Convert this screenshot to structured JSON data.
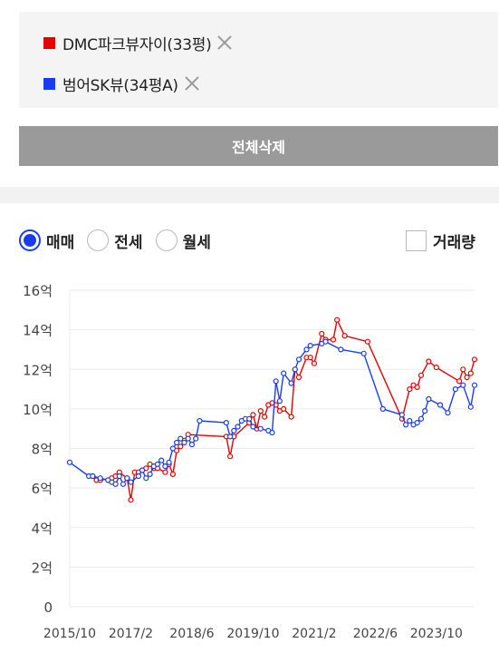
{
  "compare_list": [
    {
      "name": "DMC파크뷰자이(33평)",
      "color": "#e60000",
      "remove_icon": "close-icon"
    },
    {
      "name": "범어SK뷰(34평A)",
      "color": "#1a3cf0",
      "remove_icon": "close-icon"
    }
  ],
  "delete_all_label": "전체삭제",
  "trade_types": [
    {
      "label": "매매",
      "selected": true
    },
    {
      "label": "전세",
      "selected": false
    },
    {
      "label": "월세",
      "selected": false
    }
  ],
  "volume_toggle": {
    "label": "거래량",
    "checked": false
  },
  "chart_data": {
    "type": "line",
    "y_unit": "억",
    "ylim": [
      0,
      16
    ],
    "yticks": [
      0,
      2,
      4,
      6,
      8,
      10,
      12,
      14,
      16
    ],
    "ytick_labels": [
      "0",
      "2억",
      "4억",
      "6억",
      "8억",
      "10억",
      "12억",
      "14억",
      "16억"
    ],
    "xlim": [
      "2015-10",
      "2024-08"
    ],
    "xtick_labels": [
      "2015/10",
      "2017/2",
      "2018/6",
      "2019/10",
      "2021/2",
      "2022/6",
      "2023/10"
    ],
    "grid": true,
    "series": [
      {
        "name": "DMC파크뷰자이(33평)",
        "color": "#e60000",
        "x": [
          "2016-04",
          "2016-05",
          "2016-06",
          "2016-09",
          "2016-10",
          "2016-11",
          "2017-01",
          "2017-02",
          "2017-03",
          "2017-04",
          "2017-05",
          "2017-06",
          "2017-07",
          "2017-08",
          "2017-09",
          "2017-11",
          "2017-12",
          "2018-01",
          "2018-02",
          "2018-03",
          "2018-04",
          "2018-05",
          "2019-03",
          "2019-04",
          "2019-05",
          "2019-09",
          "2019-10",
          "2019-11",
          "2019-12",
          "2020-01",
          "2020-02",
          "2020-03",
          "2020-04",
          "2020-05",
          "2020-06",
          "2020-08",
          "2020-09",
          "2020-10",
          "2020-12",
          "2021-01",
          "2021-02",
          "2021-04",
          "2021-05",
          "2021-07",
          "2021-08",
          "2021-10",
          "2022-04",
          "2023-01",
          "2023-03",
          "2023-04",
          "2023-05",
          "2023-06",
          "2023-08",
          "2023-10",
          "2024-04",
          "2024-05",
          "2024-06",
          "2024-07",
          "2024-08"
        ],
        "values": [
          6.6,
          6.4,
          6.4,
          6.5,
          6.6,
          6.8,
          6.5,
          5.4,
          6.8,
          6.8,
          6.9,
          7.0,
          7.2,
          7.0,
          7.0,
          6.8,
          7.2,
          6.7,
          7.9,
          8.1,
          8.4,
          8.7,
          8.6,
          7.6,
          8.6,
          9.3,
          9.7,
          9.0,
          9.9,
          9.6,
          10.2,
          10.3,
          10.2,
          9.9,
          10.0,
          9.6,
          12.0,
          11.6,
          12.6,
          12.6,
          12.3,
          13.8,
          13.5,
          13.5,
          14.5,
          13.7,
          13.4,
          9.5,
          11.0,
          11.2,
          11.1,
          11.7,
          12.4,
          12.1,
          11.4,
          12.0,
          11.6,
          11.8,
          12.5
        ]
      },
      {
        "name": "범어SK뷰(34평A)",
        "color": "#1a3cf0",
        "x": [
          "2015-10",
          "2016-03",
          "2016-04",
          "2016-06",
          "2016-08",
          "2016-09",
          "2016-10",
          "2016-11",
          "2016-12",
          "2017-01",
          "2017-02",
          "2017-04",
          "2017-05",
          "2017-06",
          "2017-07",
          "2017-08",
          "2017-09",
          "2017-10",
          "2017-11",
          "2017-12",
          "2018-01",
          "2018-02",
          "2018-03",
          "2018-04",
          "2018-05",
          "2018-06",
          "2018-07",
          "2018-08",
          "2019-03",
          "2019-04",
          "2019-05",
          "2019-06",
          "2019-07",
          "2019-08",
          "2019-09",
          "2019-10",
          "2019-12",
          "2020-02",
          "2020-03",
          "2020-04",
          "2020-05",
          "2020-06",
          "2020-08",
          "2020-09",
          "2020-10",
          "2020-12",
          "2021-01",
          "2021-04",
          "2021-05",
          "2021-09",
          "2022-03",
          "2022-08",
          "2023-01",
          "2023-02",
          "2023-03",
          "2023-04",
          "2023-05",
          "2023-06",
          "2023-07",
          "2023-08",
          "2023-11",
          "2024-01",
          "2024-03",
          "2024-05",
          "2024-07",
          "2024-08"
        ],
        "values": [
          7.3,
          6.6,
          6.6,
          6.5,
          6.4,
          6.3,
          6.2,
          6.6,
          6.2,
          6.5,
          6.3,
          6.6,
          6.9,
          6.5,
          6.7,
          7.1,
          7.2,
          7.4,
          7.1,
          7.3,
          8.0,
          8.3,
          8.5,
          8.3,
          8.5,
          8.2,
          8.5,
          9.4,
          9.3,
          8.6,
          8.9,
          9.1,
          9.4,
          9.5,
          9.5,
          9.1,
          9.0,
          8.9,
          8.8,
          11.4,
          10.4,
          11.8,
          11.3,
          12.0,
          12.5,
          13.0,
          13.2,
          13.3,
          13.4,
          13.0,
          12.8,
          10.0,
          9.7,
          9.2,
          9.4,
          9.2,
          9.3,
          9.5,
          9.9,
          10.5,
          10.2,
          9.8,
          11.0,
          11.2,
          10.1,
          11.2
        ]
      }
    ]
  }
}
